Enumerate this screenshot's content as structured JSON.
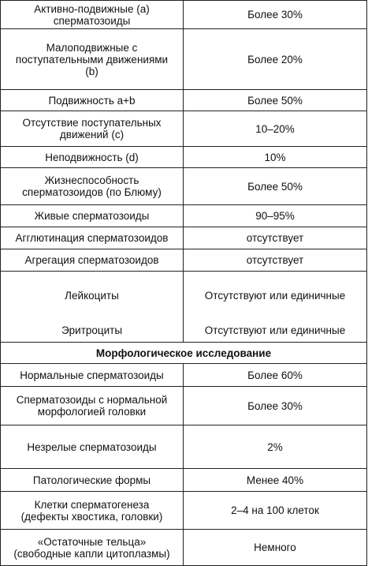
{
  "table": {
    "rows": [
      [
        "Активно-подвижные (а)\nсперматозоиды",
        "Более 30%"
      ],
      [
        "Малоподвижные с\nпоступательными движениями\n(b)",
        "Более 20%"
      ],
      [
        "Подвижность a+b",
        "Более 50%"
      ],
      [
        "Отсутствие поступательных\nдвижений (с)",
        "10–20%"
      ],
      [
        "Неподвижность (d)",
        "10%"
      ],
      [
        "Жизнеспособность\nсперматозоидов (по Блюму)",
        "Более 50%"
      ],
      [
        "Живые сперматозоиды",
        "90–95%"
      ],
      [
        "Агглютинация сперматозоидов",
        "отсутствует"
      ],
      [
        "Агрегация сперматозоидов",
        "отсутствует"
      ],
      [
        "Лейкоциты",
        "Отсутствуют или единичные"
      ],
      [
        "Эритроциты",
        "Отсутствуют или единичные"
      ],
      [
        "Морфологическое исследование"
      ],
      [
        "Нормальные сперматозоиды",
        "Более 60%"
      ],
      [
        "Сперматозоиды с нормальной\nморфологией головки",
        "Более 30%"
      ],
      [
        "Незрелые сперматозоиды",
        "2%"
      ],
      [
        "Патологические формы",
        "Менее 40%"
      ],
      [
        "Клетки сперматогенеза\n(дефекты хвостика, головки)",
        "2–4 на 100 клеток"
      ],
      [
        "«Остаточные тельца»\n(свободные капли цитоплазмы)",
        "Немного"
      ]
    ]
  }
}
